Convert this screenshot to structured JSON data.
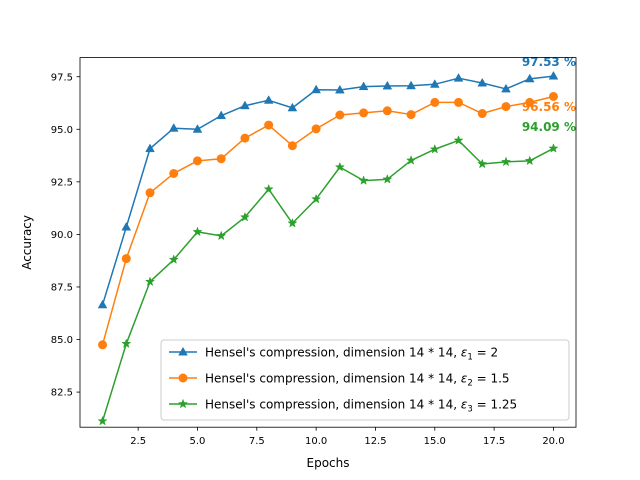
{
  "chart_data": {
    "type": "line",
    "xlabel": "Epochs",
    "ylabel": "Accuracy",
    "xlim": [
      0.05,
      20.95
    ],
    "ylim": [
      80.83,
      98.41
    ],
    "x": [
      1,
      2,
      3,
      4,
      5,
      6,
      7,
      8,
      9,
      10,
      11,
      12,
      13,
      14,
      15,
      16,
      17,
      18,
      19,
      20
    ],
    "x_ticks": [
      2.5,
      5.0,
      7.5,
      10.0,
      12.5,
      15.0,
      17.5,
      20.0
    ],
    "x_tick_labels": [
      "2.5",
      "5.0",
      "7.5",
      "10.0",
      "12.5",
      "15.0",
      "17.5",
      "20.0"
    ],
    "y_ticks": [
      82.5,
      85.0,
      87.5,
      90.0,
      92.5,
      95.0,
      97.5
    ],
    "y_tick_labels": [
      "82.5",
      "85.0",
      "87.5",
      "90.0",
      "92.5",
      "95.0",
      "97.5"
    ],
    "grid": false,
    "legend_position": "lower-right",
    "series": [
      {
        "name": "Hensel's compression, dimension 14 * 14, ",
        "eps_symbol": "ε",
        "eps_sub": "1",
        "eps_value": " = 2",
        "color": "#1f77b4",
        "marker": "triangle",
        "values": [
          86.65,
          90.35,
          94.08,
          95.05,
          95.0,
          95.65,
          96.12,
          96.38,
          96.02,
          96.88,
          96.87,
          97.03,
          97.06,
          97.07,
          97.14,
          97.43,
          97.2,
          96.92,
          97.4,
          97.53
        ],
        "end_label": "97.53 %"
      },
      {
        "name": "Hensel's compression, dimension 14 * 14, ",
        "eps_symbol": "ε",
        "eps_sub": "2",
        "eps_value": " = 1.5",
        "color": "#ff7f0e",
        "marker": "circle",
        "values": [
          84.75,
          88.85,
          91.98,
          92.9,
          93.5,
          93.6,
          94.58,
          95.2,
          94.22,
          95.02,
          95.68,
          95.78,
          95.88,
          95.7,
          96.28,
          96.28,
          95.75,
          96.08,
          96.28,
          96.56
        ],
        "end_label": "96.56 %"
      },
      {
        "name": "Hensel's compression, dimension 14 * 14, ",
        "eps_symbol": "ε",
        "eps_sub": "3",
        "eps_value": " = 1.25",
        "color": "#2ca02c",
        "marker": "star",
        "values": [
          81.12,
          84.8,
          87.75,
          88.8,
          90.12,
          89.93,
          90.82,
          92.15,
          90.53,
          91.68,
          93.2,
          92.56,
          92.62,
          93.52,
          94.05,
          94.47,
          93.35,
          93.45,
          93.5,
          94.09
        ],
        "end_label": "94.09 %"
      }
    ]
  }
}
